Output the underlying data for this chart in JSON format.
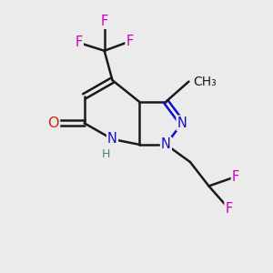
{
  "background_color": "#ebebeb",
  "bond_color": "#1a1a1a",
  "atom_colors": {
    "N": "#1010cc",
    "O": "#cc2200",
    "F": "#cc00bb",
    "C": "#1a1a1a",
    "H": "#4a8080"
  },
  "figsize": [
    3.0,
    3.0
  ],
  "dpi": 100
}
